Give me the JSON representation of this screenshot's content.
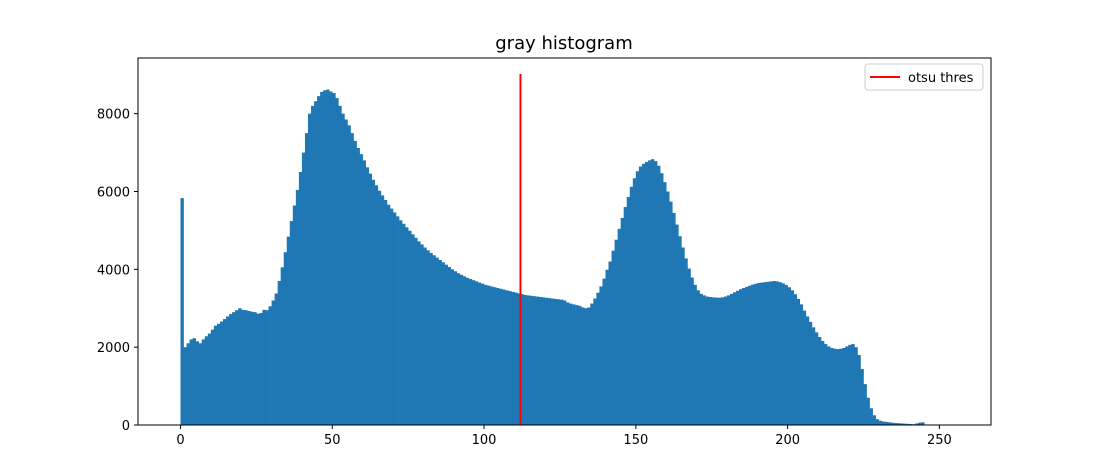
{
  "chart_data": {
    "type": "bar",
    "title": "gray histogram",
    "xlabel": "",
    "ylabel": "",
    "xlim": [
      -14,
      267
    ],
    "ylim": [
      0,
      9430
    ],
    "xticks": [
      0,
      50,
      100,
      150,
      200,
      250
    ],
    "yticks": [
      0,
      2000,
      4000,
      6000,
      8000
    ],
    "bins": {
      "start": 0,
      "width": 1
    },
    "colors": {
      "bars": "#1f77b4",
      "threshold": "#ff0000",
      "axes": "#000000"
    },
    "series": [
      {
        "values": [
          5830,
          2000,
          2100,
          2200,
          2230,
          2150,
          2100,
          2200,
          2280,
          2350,
          2450,
          2550,
          2600,
          2660,
          2720,
          2790,
          2850,
          2900,
          2950,
          3000,
          2960,
          2950,
          2930,
          2910,
          2900,
          2860,
          2880,
          2960,
          2950,
          3050,
          3200,
          3380,
          3700,
          4050,
          4440,
          4840,
          5240,
          5640,
          6040,
          6500,
          7000,
          7500,
          8000,
          8200,
          8320,
          8450,
          8560,
          8600,
          8620,
          8570,
          8530,
          8400,
          8200,
          8000,
          7850,
          7700,
          7500,
          7300,
          7120,
          6960,
          6800,
          6620,
          6460,
          6300,
          6160,
          6020,
          5900,
          5780,
          5660,
          5560,
          5460,
          5360,
          5260,
          5170,
          5080,
          4990,
          4900,
          4810,
          4720,
          4640,
          4560,
          4490,
          4420,
          4360,
          4300,
          4240,
          4180,
          4120,
          4060,
          4000,
          3950,
          3900,
          3860,
          3820,
          3780,
          3750,
          3720,
          3690,
          3660,
          3630,
          3600,
          3580,
          3560,
          3540,
          3520,
          3500,
          3480,
          3460,
          3440,
          3420,
          3400,
          3380,
          3360,
          3340,
          3330,
          3320,
          3310,
          3300,
          3290,
          3280,
          3270,
          3260,
          3250,
          3240,
          3230,
          3220,
          3200,
          3150,
          3120,
          3100,
          3080,
          3060,
          3020,
          3000,
          3020,
          3120,
          3250,
          3400,
          3560,
          3760,
          3990,
          4200,
          4480,
          4760,
          5040,
          5320,
          5600,
          5860,
          6120,
          6340,
          6520,
          6640,
          6710,
          6760,
          6800,
          6830,
          6780,
          6660,
          6470,
          6240,
          6000,
          5740,
          5450,
          5150,
          4850,
          4560,
          4280,
          4020,
          3790,
          3600,
          3460,
          3370,
          3330,
          3300,
          3290,
          3280,
          3275,
          3270,
          3280,
          3300,
          3330,
          3370,
          3410,
          3450,
          3490,
          3520,
          3550,
          3580,
          3610,
          3630,
          3650,
          3660,
          3670,
          3680,
          3690,
          3700,
          3690,
          3670,
          3640,
          3600,
          3540,
          3460,
          3360,
          3240,
          3100,
          2940,
          2790,
          2650,
          2510,
          2380,
          2260,
          2160,
          2080,
          2020,
          1980,
          1960,
          1950,
          1960,
          1980,
          2020,
          2060,
          2080,
          2000,
          1800,
          1440,
          1050,
          700,
          430,
          250,
          150,
          110,
          90,
          80,
          70,
          60,
          50,
          45,
          40,
          35,
          30,
          25,
          20,
          40,
          60,
          70
        ]
      }
    ],
    "threshold": {
      "x": 112,
      "y_top": 9020
    },
    "legend": {
      "label": "otsu thres",
      "placement": "top-right"
    }
  }
}
